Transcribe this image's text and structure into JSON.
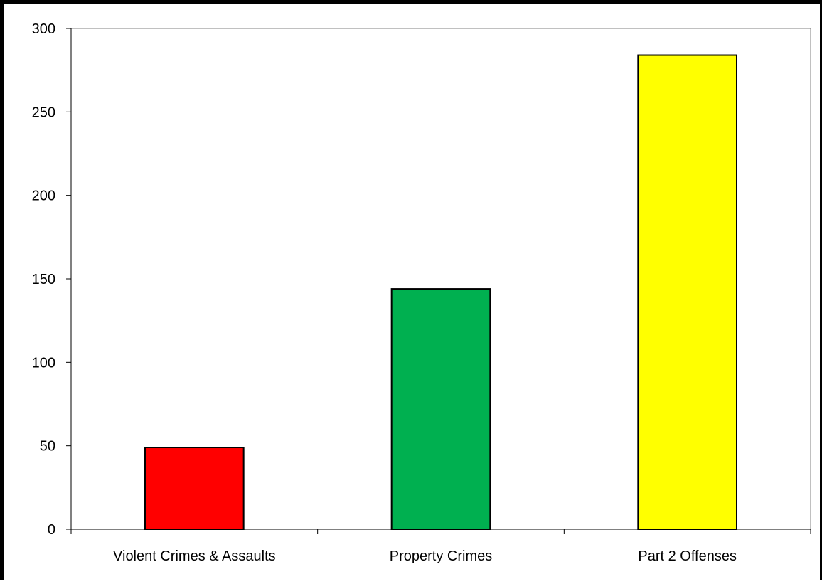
{
  "chart_data": {
    "type": "bar",
    "categories": [
      "Violent Crimes & Assaults",
      "Property Crimes",
      "Part 2 Offenses"
    ],
    "values": [
      49,
      144,
      284
    ],
    "colors": [
      "#ff0000",
      "#00b050",
      "#ffff00"
    ],
    "ylim": [
      0,
      300
    ],
    "yticks": [
      "0",
      "50",
      "100",
      "150",
      "200",
      "250",
      "300"
    ],
    "grid": false,
    "legend": "none"
  }
}
